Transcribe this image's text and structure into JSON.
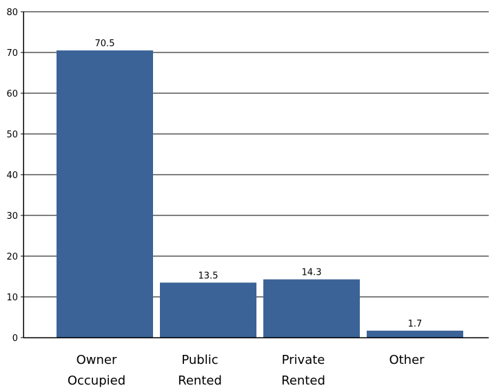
{
  "chart_data": {
    "type": "bar",
    "categories": [
      [
        "Owner",
        "Occupied"
      ],
      [
        "Public",
        "Rented"
      ],
      [
        "Private",
        "Rented"
      ],
      [
        "Other"
      ]
    ],
    "values": [
      70.5,
      13.5,
      14.3,
      1.7
    ],
    "data_labels": [
      "70.5",
      "13.5",
      "14.3",
      "1.7"
    ],
    "title": "",
    "xlabel": "",
    "ylabel": "",
    "ylim": [
      0,
      80
    ],
    "yticks": [
      "0",
      "10",
      "20",
      "30",
      "40",
      "50",
      "60",
      "70",
      "80"
    ],
    "grid": "horizontal",
    "legend": "none",
    "colors": {
      "bar": "#3b6397",
      "grid": "#000000",
      "axis": "#000000"
    }
  }
}
